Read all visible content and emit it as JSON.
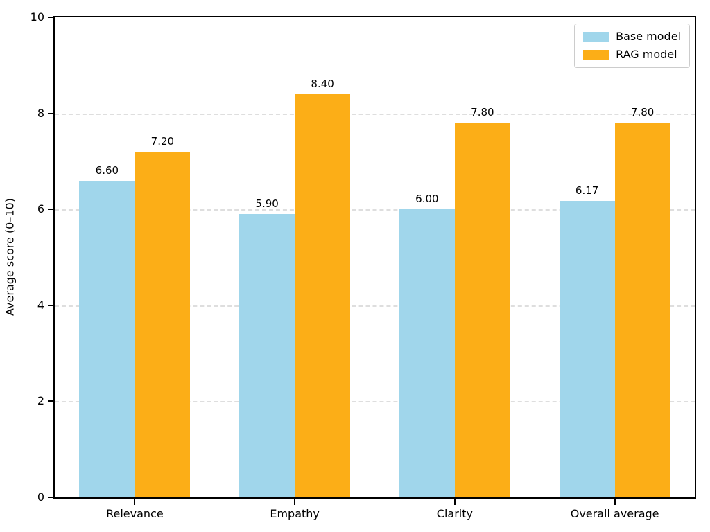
{
  "chart_data": {
    "type": "bar",
    "title": "",
    "xlabel": "",
    "ylabel": "Average score (0–10)",
    "ylim": [
      0,
      10
    ],
    "yticks": [
      0,
      2,
      4,
      6,
      8,
      10
    ],
    "grid": "horizontal dashed, behind bars",
    "legend_position": "upper right",
    "categories": [
      "Relevance",
      "Empathy",
      "Clarity",
      "Overall average"
    ],
    "series": [
      {
        "name": "Base model",
        "color": "#a0d6eb",
        "values": [
          6.6,
          5.9,
          6.0,
          6.17
        ],
        "labels": [
          "6.60",
          "5.90",
          "6.00",
          "6.17"
        ]
      },
      {
        "name": "RAG model",
        "color": "#fcae17",
        "values": [
          7.2,
          8.4,
          7.8,
          7.8
        ],
        "labels": [
          "7.20",
          "8.40",
          "7.80",
          "7.80"
        ]
      }
    ]
  },
  "colors": {
    "background": "#ffffff",
    "spine": "#000000",
    "grid": "#dedede",
    "text": "#000000",
    "legend_border": "#cccccc"
  }
}
